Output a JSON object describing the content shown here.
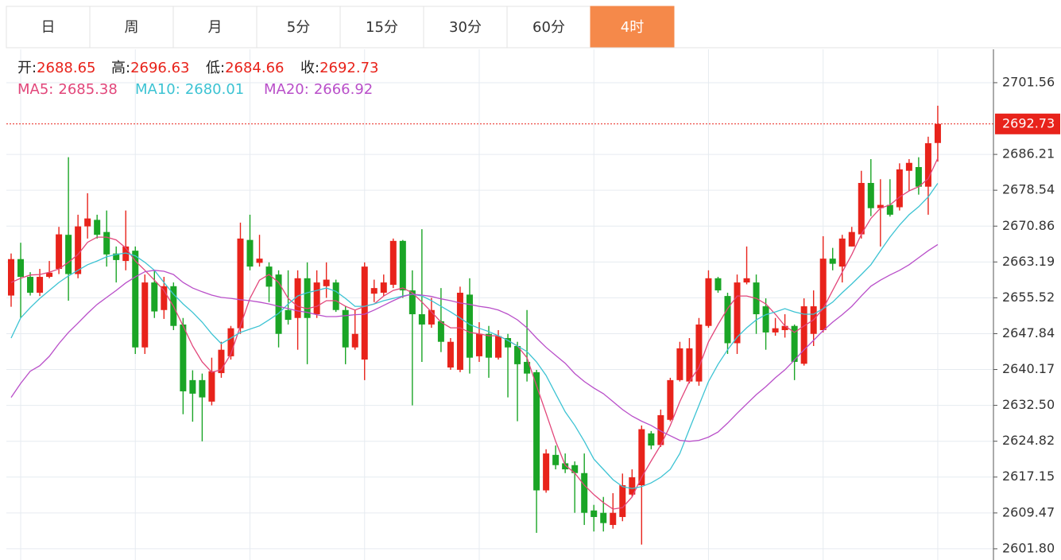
{
  "tabs": [
    "日",
    "周",
    "月",
    "5分",
    "15分",
    "30分",
    "60分",
    "4时"
  ],
  "active_tab": 7,
  "chart_data": {
    "type": "candlestick",
    "up_color": "#e8231b",
    "down_color": "#1aa526",
    "ohlc_labels": [
      "开:",
      "高:",
      "低:",
      "收:"
    ],
    "open": [
      2656.0,
      2663.8,
      2660.0,
      2656.6,
      2660.0,
      2661.7,
      2669.0,
      2660.6,
      2670.8,
      2672.2,
      2669.6,
      2665.0,
      2663.4,
      2665.6,
      2644.9,
      2658.8,
      2652.9,
      2658.0,
      2649.8,
      2637.9,
      2637.9,
      2633.3,
      2639.4,
      2643.0,
      2649.0,
      2667.9,
      2663.0,
      2662.2,
      2660.5,
      2652.9,
      2651.2,
      2659.7,
      2652.0,
      2658.0,
      2658.8,
      2652.9,
      2644.9,
      2642.3,
      2656.4,
      2656.6,
      2658.3,
      2667.7,
      2657.1,
      2652.0,
      2649.8,
      2650.5,
      2640.6,
      2640.1,
      2656.2,
      2643.0,
      2647.8,
      2642.7,
      2646.9,
      2645.2,
      2641.8,
      2639.6,
      2614.3,
      2621.9,
      2620.1,
      2619.7,
      2618.0,
      2610.0,
      2609.5,
      2606.9,
      2608.6,
      2613.4,
      2615.4,
      2626.5,
      2624.0,
      2629.4,
      2637.9,
      2637.6,
      2637.6,
      2649.5,
      2659.7,
      2655.9,
      2645.8,
      2658.8,
      2658.8,
      2653.7,
      2648.1,
      2648.6,
      2649.5,
      2641.4,
      2647.8,
      2648.6,
      2663.9,
      2662.2,
      2666.5,
      2669.1,
      2680.1,
      2674.7,
      2675.4,
      2674.9,
      2682.7,
      2683.5,
      2679.3,
      2688.65
    ],
    "high": [
      2665.0,
      2667.3,
      2661.0,
      2661.7,
      2663.4,
      2670.7,
      2685.6,
      2673.3,
      2677.9,
      2673.3,
      2674.2,
      2666.5,
      2674.2,
      2666.5,
      2660.5,
      2661.4,
      2660.0,
      2658.8,
      2651.2,
      2640.0,
      2639.3,
      2642.7,
      2646.1,
      2649.5,
      2671.6,
      2673.3,
      2669.0,
      2663.1,
      2661.4,
      2661.4,
      2661.4,
      2663.1,
      2661.4,
      2663.1,
      2659.4,
      2653.8,
      2652.9,
      2663.1,
      2659.4,
      2660.5,
      2668.2,
      2667.9,
      2661.4,
      2670.2,
      2655.5,
      2657.6,
      2646.9,
      2657.9,
      2659.7,
      2650.3,
      2649.5,
      2648.6,
      2647.8,
      2646.1,
      2652.9,
      2640.1,
      2623.1,
      2623.9,
      2622.2,
      2620.5,
      2622.2,
      2611.2,
      2612.9,
      2613.7,
      2617.9,
      2618.8,
      2628.2,
      2627.0,
      2631.6,
      2638.4,
      2646.1,
      2646.9,
      2651.2,
      2661.4,
      2660.0,
      2656.6,
      2660.5,
      2666.5,
      2660.5,
      2655.4,
      2651.2,
      2652.0,
      2649.8,
      2655.4,
      2657.1,
      2668.7,
      2666.2,
      2669.0,
      2670.7,
      2682.7,
      2685.2,
      2680.9,
      2680.9,
      2684.3,
      2685.2,
      2685.6,
      2690.0,
      2696.63
    ],
    "low": [
      2653.6,
      2651.2,
      2656.0,
      2655.9,
      2659.7,
      2660.6,
      2654.9,
      2659.7,
      2668.2,
      2668.2,
      2662.2,
      2658.8,
      2661.4,
      2643.5,
      2643.5,
      2651.2,
      2651.0,
      2648.6,
      2630.6,
      2629.0,
      2624.8,
      2632.5,
      2638.4,
      2642.3,
      2647.8,
      2661.4,
      2662.2,
      2654.6,
      2644.9,
      2649.8,
      2644.4,
      2641.3,
      2651.2,
      2655.5,
      2652.5,
      2641.3,
      2644.4,
      2637.9,
      2654.6,
      2655.9,
      2657.6,
      2655.5,
      2632.5,
      2641.8,
      2649.1,
      2643.9,
      2640.1,
      2639.6,
      2639.3,
      2641.8,
      2638.4,
      2642.3,
      2634.2,
      2629.1,
      2637.6,
      2605.2,
      2613.8,
      2618.8,
      2618.0,
      2609.5,
      2606.9,
      2605.5,
      2605.5,
      2606.1,
      2607.7,
      2613.0,
      2602.7,
      2623.1,
      2623.6,
      2629.1,
      2637.6,
      2637.2,
      2636.7,
      2649.1,
      2656.6,
      2643.5,
      2643.5,
      2658.4,
      2647.8,
      2644.4,
      2647.4,
      2647.0,
      2637.9,
      2641.0,
      2645.2,
      2648.1,
      2661.4,
      2658.8,
      2666.5,
      2668.2,
      2673.0,
      2666.5,
      2672.9,
      2674.2,
      2678.4,
      2677.6,
      2673.3,
      2684.66
    ],
    "close": [
      2663.8,
      2660.0,
      2656.6,
      2660.0,
      2660.9,
      2669.1,
      2660.6,
      2670.8,
      2672.5,
      2669.0,
      2664.8,
      2663.6,
      2666.5,
      2644.9,
      2658.8,
      2652.6,
      2658.0,
      2649.5,
      2635.5,
      2635.0,
      2634.2,
      2639.8,
      2644.4,
      2649.0,
      2668.2,
      2662.2,
      2663.9,
      2657.9,
      2647.8,
      2650.8,
      2659.7,
      2651.2,
      2658.8,
      2659.4,
      2652.9,
      2644.9,
      2647.8,
      2662.2,
      2657.6,
      2658.8,
      2667.7,
      2657.1,
      2652.0,
      2649.8,
      2652.9,
      2646.1,
      2646.1,
      2656.6,
      2642.7,
      2647.8,
      2642.7,
      2647.3,
      2644.9,
      2641.3,
      2639.3,
      2614.3,
      2622.2,
      2619.7,
      2618.8,
      2618.0,
      2609.5,
      2608.6,
      2607.3,
      2609.5,
      2615.4,
      2617.1,
      2627.4,
      2623.9,
      2630.4,
      2637.9,
      2644.7,
      2644.7,
      2649.8,
      2659.7,
      2657.1,
      2645.8,
      2658.8,
      2659.7,
      2652.0,
      2648.1,
      2649.0,
      2649.5,
      2641.8,
      2653.7,
      2653.7,
      2663.9,
      2662.8,
      2668.2,
      2669.6,
      2680.1,
      2674.7,
      2675.4,
      2673.3,
      2683.0,
      2684.4,
      2679.3,
      2688.6,
      2692.73
    ],
    "series": [
      {
        "name": "MA5:",
        "color": "#e2467a",
        "values": [
          2658.8,
          2659.7,
          2660.4,
          2660.5,
          2661.0,
          2661.7,
          2663.1,
          2664.8,
          2667.4,
          2668.5,
          2668.5,
          2667.9,
          2666.2,
          2663.4,
          2661.4,
          2659.3,
          2657.1,
          2653.7,
          2649.5,
          2645.2,
          2641.8,
          2639.6,
          2640.1,
          2643.5,
          2649.5,
          2655.4,
          2659.3,
          2660.5,
          2658.8,
          2655.4,
          2653.7,
          2653.2,
          2653.7,
          2654.9,
          2654.9,
          2653.7,
          2652.9,
          2653.7,
          2654.2,
          2655.9,
          2657.1,
          2657.6,
          2656.6,
          2654.6,
          2652.5,
          2650.3,
          2649.1,
          2649.1,
          2648.1,
          2647.8,
          2647.4,
          2647.4,
          2646.4,
          2645.2,
          2642.7,
          2636.7,
          2630.8,
          2624.8,
          2619.7,
          2618.0,
          2615.4,
          2613.4,
          2611.7,
          2610.3,
          2610.6,
          2612.9,
          2617.1,
          2620.6,
          2624.0,
          2628.2,
          2633.3,
          2637.6,
          2640.6,
          2646.1,
          2649.8,
          2653.2,
          2655.9,
          2655.9,
          2655.4,
          2654.2,
          2652.0,
          2649.5,
          2648.1,
          2649.5,
          2650.8,
          2653.2,
          2657.1,
          2661.0,
          2664.8,
          2669.1,
          2672.5,
          2674.7,
          2675.4,
          2677.1,
          2678.4,
          2679.3,
          2681.0,
          2685.38
        ]
      },
      {
        "name": "MA10:",
        "color": "#3cc3d3",
        "values": [
          2646.9,
          2651.2,
          2653.4,
          2655.4,
          2657.1,
          2658.8,
          2660.2,
          2661.4,
          2662.6,
          2663.4,
          2664.3,
          2664.8,
          2665.1,
          2664.5,
          2663.1,
          2661.4,
          2658.8,
          2656.3,
          2654.2,
          2652.4,
          2650.3,
          2647.8,
          2645.7,
          2646.9,
          2648.1,
          2648.8,
          2649.5,
          2650.8,
          2652.2,
          2654.2,
          2655.9,
          2656.6,
          2657.1,
          2657.6,
          2656.9,
          2655.4,
          2653.7,
          2653.7,
          2654.2,
          2654.9,
          2655.4,
          2655.9,
          2656.3,
          2655.9,
          2654.9,
          2653.7,
          2652.5,
          2651.2,
          2649.8,
          2649.0,
          2648.3,
          2647.4,
          2646.4,
          2645.2,
          2644.0,
          2641.8,
          2638.9,
          2635.0,
          2631.1,
          2628.2,
          2624.8,
          2621.0,
          2618.8,
          2616.6,
          2615.1,
          2614.7,
          2615.1,
          2615.9,
          2617.1,
          2618.8,
          2622.2,
          2627.4,
          2632.5,
          2637.6,
          2641.3,
          2644.4,
          2647.1,
          2649.1,
          2650.8,
          2651.9,
          2652.5,
          2653.2,
          2652.5,
          2652.0,
          2652.0,
          2653.2,
          2654.6,
          2656.6,
          2658.5,
          2660.5,
          2662.6,
          2665.6,
          2668.5,
          2671.1,
          2673.3,
          2675.0,
          2677.1,
          2680.01
        ]
      },
      {
        "name": "MA20:",
        "color": "#b94fc9",
        "values": [
          2634.2,
          2637.2,
          2639.8,
          2641.0,
          2643.0,
          2645.7,
          2648.1,
          2650.1,
          2652.2,
          2654.1,
          2655.6,
          2657.1,
          2658.7,
          2660.0,
          2661.1,
          2661.4,
          2661.2,
          2660.5,
          2658.8,
          2657.6,
          2656.8,
          2656.1,
          2655.6,
          2655.4,
          2655.1,
          2654.9,
          2654.6,
          2654.2,
          2653.7,
          2653.2,
          2652.7,
          2652.4,
          2651.9,
          2651.5,
          2651.5,
          2651.7,
          2651.9,
          2652.0,
          2652.9,
          2653.9,
          2654.9,
          2655.8,
          2656.3,
          2656.1,
          2655.8,
          2655.3,
          2654.9,
          2654.4,
          2654.1,
          2653.7,
          2653.4,
          2652.9,
          2652.0,
          2650.8,
          2649.1,
          2646.9,
          2644.9,
          2643.2,
          2641.5,
          2639.3,
          2637.6,
          2636.2,
          2635.0,
          2633.3,
          2631.6,
          2630.2,
          2629.1,
          2628.2,
          2627.0,
          2626.0,
          2625.0,
          2624.8,
          2625.0,
          2625.7,
          2626.8,
          2628.7,
          2630.8,
          2632.8,
          2634.8,
          2636.5,
          2638.4,
          2640.1,
          2642.2,
          2644.4,
          2646.4,
          2648.5,
          2650.3,
          2651.9,
          2653.7,
          2655.9,
          2658.0,
          2659.3,
          2660.4,
          2661.4,
          2662.6,
          2664.1,
          2665.6,
          2666.92
        ]
      }
    ],
    "ylim": [
      2599.4,
      2708.7
    ],
    "yticks": [
      2701.56,
      2686.21,
      2678.54,
      2670.86,
      2663.19,
      2655.52,
      2647.84,
      2640.17,
      {
        "value": 2632.5,
        "label": "2632.50"
      },
      2624.82,
      2617.15,
      2609.47,
      {
        "value": 2601.8,
        "label": "2601.80"
      }
    ],
    "grid": true
  }
}
